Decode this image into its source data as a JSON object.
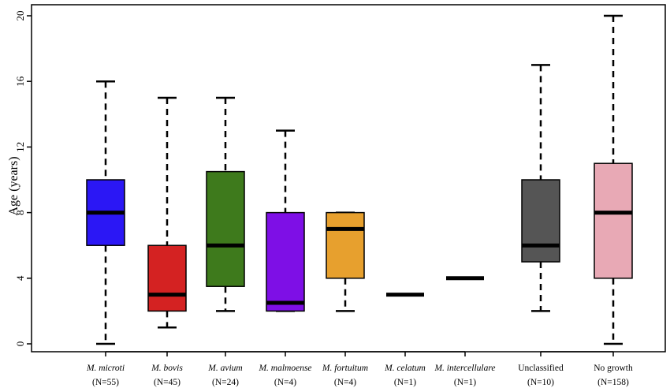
{
  "chart_data": {
    "type": "box",
    "title": "",
    "xlabel": "",
    "ylabel": "Age (years)",
    "ylim": [
      0,
      20
    ],
    "yticks": [
      0,
      4,
      8,
      12,
      16,
      20
    ],
    "grid": false,
    "legend": "none",
    "categories": [
      {
        "name": "M. microti",
        "n_label": "(N=55)",
        "italic": true,
        "color": "#2b17f5",
        "min": 0,
        "q1": 6,
        "median": 8,
        "q3": 10,
        "max": 16
      },
      {
        "name": "M. bovis",
        "n_label": "(N=45)",
        "italic": true,
        "color": "#d42222",
        "min": 1,
        "q1": 2,
        "median": 3,
        "q3": 6,
        "max": 15
      },
      {
        "name": "M. avium",
        "n_label": "(N=24)",
        "italic": true,
        "color": "#3e7a1c",
        "min": 2,
        "q1": 3.5,
        "median": 6,
        "q3": 10.5,
        "max": 15
      },
      {
        "name": "M. malmoense",
        "n_label": "(N=4)",
        "italic": true,
        "color": "#7e0fe6",
        "min": 2,
        "q1": 2,
        "median": 2.5,
        "q3": 8,
        "max": 13
      },
      {
        "name": "M. fortuitum",
        "n_label": "(N=4)",
        "italic": true,
        "color": "#e7a02e",
        "min": 2,
        "q1": 4,
        "median": 7,
        "q3": 8,
        "max": 8
      },
      {
        "name": "M. celatum",
        "n_label": "(N=1)",
        "italic": true,
        "color": "#000000",
        "min": 3,
        "q1": 3,
        "median": 3,
        "q3": 3,
        "max": 3
      },
      {
        "name": "M. intercellulare",
        "n_label": "(N=1)",
        "italic": true,
        "color": "#000000",
        "min": 4,
        "q1": 4,
        "median": 4,
        "q3": 4,
        "max": 4
      },
      {
        "name": "Unclassified",
        "n_label": "(N=10)",
        "italic": false,
        "color": "#555555",
        "min": 2,
        "q1": 5,
        "median": 6,
        "q3": 10,
        "max": 17
      },
      {
        "name": "No growth",
        "n_label": "(N=158)",
        "italic": false,
        "color": "#e8a9b5",
        "min": 0,
        "q1": 4,
        "median": 8,
        "q3": 11,
        "max": 20
      }
    ]
  }
}
